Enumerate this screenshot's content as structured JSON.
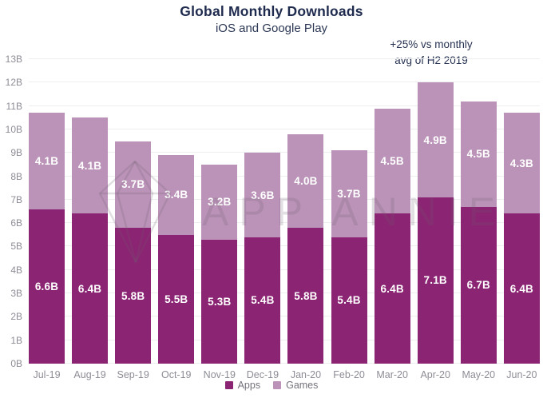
{
  "header": {
    "title": "Global Monthly Downloads",
    "subtitle": "iOS and Google Play"
  },
  "annotation": {
    "line1": "+25% vs monthly",
    "line2": "avg of H2 2019"
  },
  "watermark_text": "APP ANNIE",
  "colors": {
    "apps": "#8b2473",
    "games": "#bb93b8",
    "title_navy": "#1f2b4e",
    "axis_gray": "#8d8d96",
    "gridline": "#eeedf0"
  },
  "chart_data": {
    "type": "bar",
    "stacked": true,
    "title": "Global Monthly Downloads",
    "subtitle": "iOS and Google Play",
    "annotation": "+25% vs monthly avg of H2 2019",
    "categories": [
      "Jul-19",
      "Aug-19",
      "Sep-19",
      "Oct-19",
      "Nov-19",
      "Dec-19",
      "Jan-20",
      "Feb-20",
      "Mar-20",
      "Apr-20",
      "May-20",
      "Jun-20"
    ],
    "series": [
      {
        "name": "Apps",
        "color": "#8b2473",
        "values": [
          6.6,
          6.4,
          5.8,
          5.5,
          5.3,
          5.4,
          5.8,
          5.4,
          6.4,
          7.1,
          6.7,
          6.4
        ],
        "labels": [
          "6.6B",
          "6.4B",
          "5.8B",
          "5.5B",
          "5.3B",
          "5.4B",
          "5.8B",
          "5.4B",
          "6.4B",
          "7.1B",
          "6.7B",
          "6.4B"
        ]
      },
      {
        "name": "Games",
        "color": "#bb93b8",
        "values": [
          4.1,
          4.1,
          3.7,
          3.4,
          3.2,
          3.6,
          4.0,
          3.7,
          4.5,
          4.9,
          4.5,
          4.3
        ],
        "labels": [
          "4.1B",
          "4.1B",
          "3.7B",
          "3.4B",
          "3.2B",
          "3.6B",
          "4.0B",
          "3.7B",
          "4.5B",
          "4.9B",
          "4.5B",
          "4.3B"
        ]
      }
    ],
    "y_ticks": [
      "0B",
      "1B",
      "2B",
      "3B",
      "4B",
      "5B",
      "6B",
      "7B",
      "8B",
      "9B",
      "10B",
      "11B",
      "12B",
      "13B"
    ],
    "ylim": [
      0,
      13
    ],
    "grid": true,
    "legend_position": "bottom",
    "xlabel": "",
    "ylabel": ""
  }
}
